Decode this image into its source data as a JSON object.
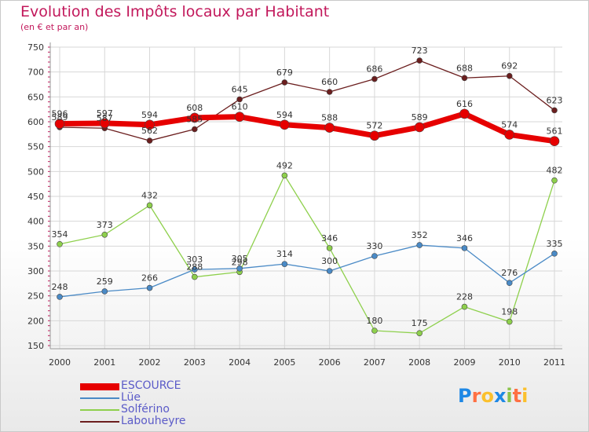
{
  "chart": {
    "title": "Evolution des Impôts locaux par Habitant",
    "subtitle": "(en € et par an)"
  },
  "logo": {
    "text": "Proxiti",
    "letters": [
      "P",
      "r",
      "o",
      "x",
      "i",
      "t",
      "i"
    ],
    "colors": [
      "#1e88e5",
      "#ff7043",
      "#fbc02d",
      "#1e88e5",
      "#8bc34a",
      "#ff7043",
      "#fbc02d"
    ]
  },
  "chart_data": {
    "type": "line",
    "title": "Evolution des Impôts locaux par Habitant",
    "subtitle": "(en € et par an)",
    "xlabel": "",
    "ylabel": "",
    "categories": [
      "2000",
      "2001",
      "2002",
      "2003",
      "2004",
      "2005",
      "2006",
      "2007",
      "2008",
      "2009",
      "2010",
      "2011"
    ],
    "ylim": [
      150,
      750
    ],
    "yticks": [
      150,
      200,
      250,
      300,
      350,
      400,
      450,
      500,
      550,
      600,
      650,
      700,
      750
    ],
    "grid": true,
    "legend_position": "bottom-left",
    "series": [
      {
        "name": "ESCOURCE",
        "color": "#e60000",
        "values": [
          596,
          597,
          594,
          608,
          610,
          594,
          588,
          572,
          589,
          616,
          574,
          561
        ]
      },
      {
        "name": "Lüe",
        "color": "#4a8ac6",
        "values": [
          248,
          259,
          266,
          303,
          305,
          314,
          300,
          330,
          352,
          346,
          276,
          335
        ]
      },
      {
        "name": "Solférino",
        "color": "#8ed04c",
        "values": [
          354,
          373,
          432,
          288,
          298,
          492,
          346,
          180,
          175,
          228,
          198,
          482
        ]
      },
      {
        "name": "Labouheyre",
        "color": "#6b1e1e",
        "values": [
          589,
          587,
          562,
          585,
          645,
          679,
          660,
          686,
          723,
          688,
          692,
          623
        ]
      }
    ]
  }
}
